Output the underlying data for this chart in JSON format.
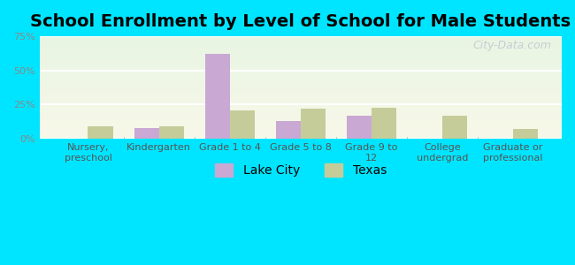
{
  "title": "School Enrollment by Level of School for Male Students",
  "categories": [
    "Nursery,\npreschool",
    "Kindergarten",
    "Grade 1 to 4",
    "Grade 5 to 8",
    "Grade 9 to\n12",
    "College\nundergrad",
    "Graduate or\nprofessional"
  ],
  "lake_city": [
    0,
    8,
    62,
    13,
    17,
    0,
    0
  ],
  "texas": [
    9,
    9,
    21,
    22,
    23,
    17,
    7
  ],
  "lake_city_color": "#c9a8d4",
  "texas_color": "#c5cc9a",
  "background_outer": "#00e5ff",
  "background_plot_top": "#e8f5e2",
  "background_plot_bottom": "#f5f5e8",
  "ylim": [
    0,
    75
  ],
  "yticks": [
    0,
    25,
    50,
    75
  ],
  "ytick_labels": [
    "0%",
    "25%",
    "50%",
    "75%"
  ],
  "title_fontsize": 14,
  "tick_fontsize": 8,
  "legend_fontsize": 10,
  "bar_width": 0.35,
  "grid_color": "#ffffff",
  "watermark": "City-Data.com"
}
